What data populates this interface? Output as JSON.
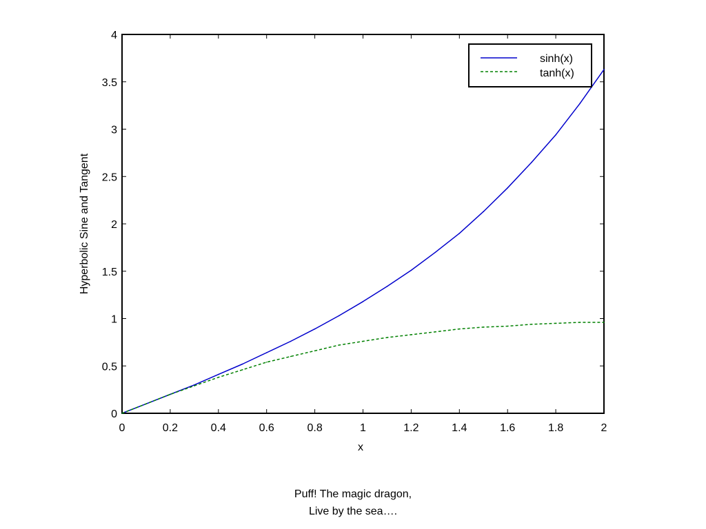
{
  "chart_data": {
    "type": "line",
    "xlabel": "x",
    "ylabel": "Hyperbolic Sine and Tangent",
    "xlim": [
      0,
      2
    ],
    "ylim": [
      0,
      4
    ],
    "x_ticks": [
      "0",
      "0.2",
      "0.4",
      "0.6",
      "0.8",
      "1",
      "1.2",
      "1.4",
      "1.6",
      "1.8",
      "2"
    ],
    "y_ticks": [
      "0",
      "0.5",
      "1",
      "1.5",
      "2",
      "2.5",
      "3",
      "3.5",
      "4"
    ],
    "x_tick_values": [
      0,
      0.2,
      0.4,
      0.6,
      0.8,
      1.0,
      1.2,
      1.4,
      1.6,
      1.8,
      2.0
    ],
    "y_tick_values": [
      0,
      0.5,
      1,
      1.5,
      2,
      2.5,
      3,
      3.5,
      4
    ],
    "grid": false,
    "legend_position": "top-right",
    "x": [
      0,
      0.1,
      0.2,
      0.3,
      0.4,
      0.5,
      0.6,
      0.7,
      0.8,
      0.9,
      1.0,
      1.1,
      1.2,
      1.3,
      1.4,
      1.5,
      1.6,
      1.7,
      1.8,
      1.9,
      2.0
    ],
    "series": [
      {
        "name": "sinh(x)",
        "color": "#0000cc",
        "style": "solid",
        "values": [
          0,
          0.1,
          0.2,
          0.3,
          0.41,
          0.52,
          0.64,
          0.76,
          0.89,
          1.03,
          1.18,
          1.34,
          1.51,
          1.7,
          1.9,
          2.13,
          2.38,
          2.65,
          2.94,
          3.27,
          3.63
        ]
      },
      {
        "name": "tanh(x)",
        "color": "#008000",
        "style": "dashed",
        "values": [
          0,
          0.1,
          0.2,
          0.29,
          0.38,
          0.46,
          0.54,
          0.6,
          0.66,
          0.72,
          0.76,
          0.8,
          0.83,
          0.86,
          0.89,
          0.91,
          0.92,
          0.94,
          0.95,
          0.96,
          0.96
        ]
      }
    ]
  },
  "caption": {
    "line1": "Puff! The magic dragon,",
    "line2": "Live by the sea…."
  }
}
